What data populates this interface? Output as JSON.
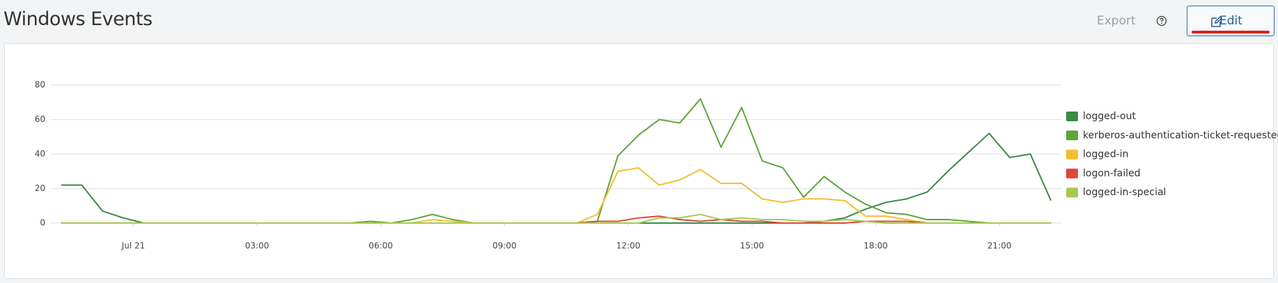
{
  "header": {
    "title": "Windows Events",
    "export": "Export",
    "edit": "Edit"
  },
  "chart_data": {
    "type": "line",
    "x": [
      -1.75,
      -1.25,
      -0.75,
      -0.25,
      0.25,
      0.75,
      1.25,
      1.75,
      2.25,
      2.75,
      3.25,
      3.75,
      4.25,
      4.75,
      5.25,
      5.75,
      6.25,
      6.75,
      7.25,
      7.75,
      8.25,
      8.75,
      9.25,
      9.75,
      10.25,
      10.75,
      11.25,
      11.75,
      12.25,
      12.75,
      13.25,
      13.75,
      14.25,
      14.75,
      15.25,
      15.75,
      16.25,
      16.75,
      17.25,
      17.75,
      18.25,
      18.75,
      19.25,
      19.75,
      20.25,
      20.75,
      21.25,
      21.75,
      22.25
    ],
    "xlim": [
      -2,
      22.5
    ],
    "xticks": [
      {
        "value": 0,
        "label": "Jul 21"
      },
      {
        "value": 3,
        "label": "03:00"
      },
      {
        "value": 6,
        "label": "06:00"
      },
      {
        "value": 9,
        "label": "09:00"
      },
      {
        "value": 12,
        "label": "12:00"
      },
      {
        "value": 15,
        "label": "15:00"
      },
      {
        "value": 18,
        "label": "18:00"
      },
      {
        "value": 21,
        "label": "21:00"
      }
    ],
    "ylim": [
      0,
      80
    ],
    "yticks": [
      0,
      20,
      40,
      60,
      80
    ],
    "grid": true,
    "legend": "right",
    "series": [
      {
        "name": "logged-out",
        "color": "#3b8a47",
        "values": [
          22,
          22,
          7,
          3,
          0,
          0,
          0,
          0,
          0,
          0,
          0,
          0,
          0,
          0,
          0,
          0,
          0,
          0,
          0,
          0,
          0,
          0,
          0,
          0,
          0,
          0,
          0,
          0,
          0,
          0,
          0,
          0,
          0,
          0,
          0,
          0,
          0,
          1,
          3,
          8,
          12,
          14,
          18,
          30,
          41,
          52,
          38,
          40,
          13
        ]
      },
      {
        "name": "kerberos-authentication-ticket-requested",
        "color": "#5ea63a",
        "values": [
          0,
          0,
          0,
          0,
          0,
          0,
          0,
          0,
          0,
          0,
          0,
          0,
          0,
          0,
          0,
          1,
          0,
          2,
          5,
          2,
          0,
          0,
          0,
          0,
          0,
          0,
          1,
          39,
          51,
          60,
          58,
          72,
          44,
          67,
          36,
          32,
          15,
          27,
          18,
          11,
          6,
          5,
          2,
          2,
          1,
          0,
          0,
          0,
          0
        ]
      },
      {
        "name": "logged-in",
        "color": "#f5bd33",
        "values": [
          0,
          0,
          0,
          0,
          0,
          0,
          0,
          0,
          0,
          0,
          0,
          0,
          0,
          0,
          0,
          0,
          0,
          0,
          2,
          1,
          0,
          0,
          0,
          0,
          0,
          0,
          5,
          30,
          32,
          22,
          25,
          31,
          23,
          23,
          14,
          12,
          14,
          14,
          13,
          4,
          4,
          2,
          0,
          0,
          0,
          0,
          0,
          0,
          0
        ]
      },
      {
        "name": "logon-failed",
        "color": "#df463a",
        "values": [
          0,
          0,
          0,
          0,
          0,
          0,
          0,
          0,
          0,
          0,
          0,
          0,
          0,
          0,
          0,
          0,
          0,
          0,
          0,
          0,
          0,
          0,
          0,
          0,
          0,
          0,
          1,
          1,
          3,
          4,
          2,
          1,
          2,
          1,
          1,
          0,
          0,
          0,
          0,
          1,
          1,
          1,
          0,
          0,
          0,
          0,
          0,
          0,
          0
        ]
      },
      {
        "name": "logged-in-special",
        "color": "#a9c84f",
        "values": [
          0,
          0,
          0,
          0,
          0,
          0,
          0,
          0,
          0,
          0,
          0,
          0,
          0,
          0,
          0,
          0,
          0,
          0,
          0,
          0,
          0,
          0,
          0,
          0,
          0,
          0,
          0,
          0,
          0,
          3,
          3,
          5,
          2,
          3,
          2,
          2,
          1,
          1,
          2,
          1,
          0,
          0,
          0,
          0,
          0,
          0,
          0,
          0,
          0
        ]
      }
    ]
  }
}
